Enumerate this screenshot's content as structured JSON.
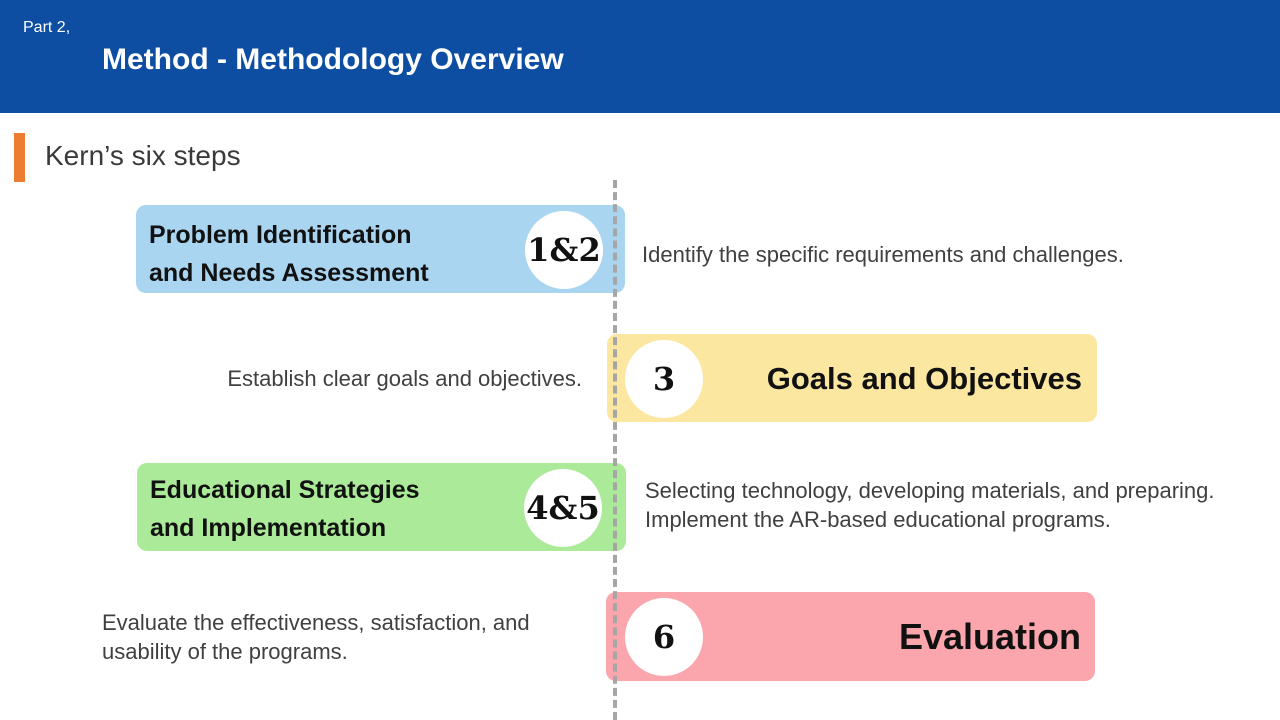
{
  "header": {
    "part": "Part 2,",
    "title": "Method - Methodology Overview"
  },
  "section": {
    "title": "Kern’s six steps"
  },
  "colors": {
    "header_bg": "#0d4ea3",
    "accent": "#ed7d31",
    "step_blue": "#a9d5f1",
    "step_yellow": "#fce7a0",
    "step_green": "#aaea98",
    "step_pink": "#fba5ad"
  },
  "steps": [
    {
      "number": "1&2",
      "label_line1": "Problem Identification",
      "label_line2": "and Needs Assessment",
      "description_line1": "Identify the specific requirements and challenges.",
      "description_line2": ""
    },
    {
      "number": "3",
      "label_line1": "Goals and Objectives",
      "label_line2": "",
      "description_line1": "Establish clear goals and objectives.",
      "description_line2": ""
    },
    {
      "number": "4&5",
      "label_line1": "Educational Strategies",
      "label_line2": "and Implementation",
      "description_line1": "Selecting technology, developing materials, and preparing.",
      "description_line2": "Implement the AR-based educational programs."
    },
    {
      "number": "6",
      "label_line1": "Evaluation",
      "label_line2": "",
      "description_line1": "Evaluate the effectiveness, satisfaction, and",
      "description_line2": "usability of the programs."
    }
  ]
}
